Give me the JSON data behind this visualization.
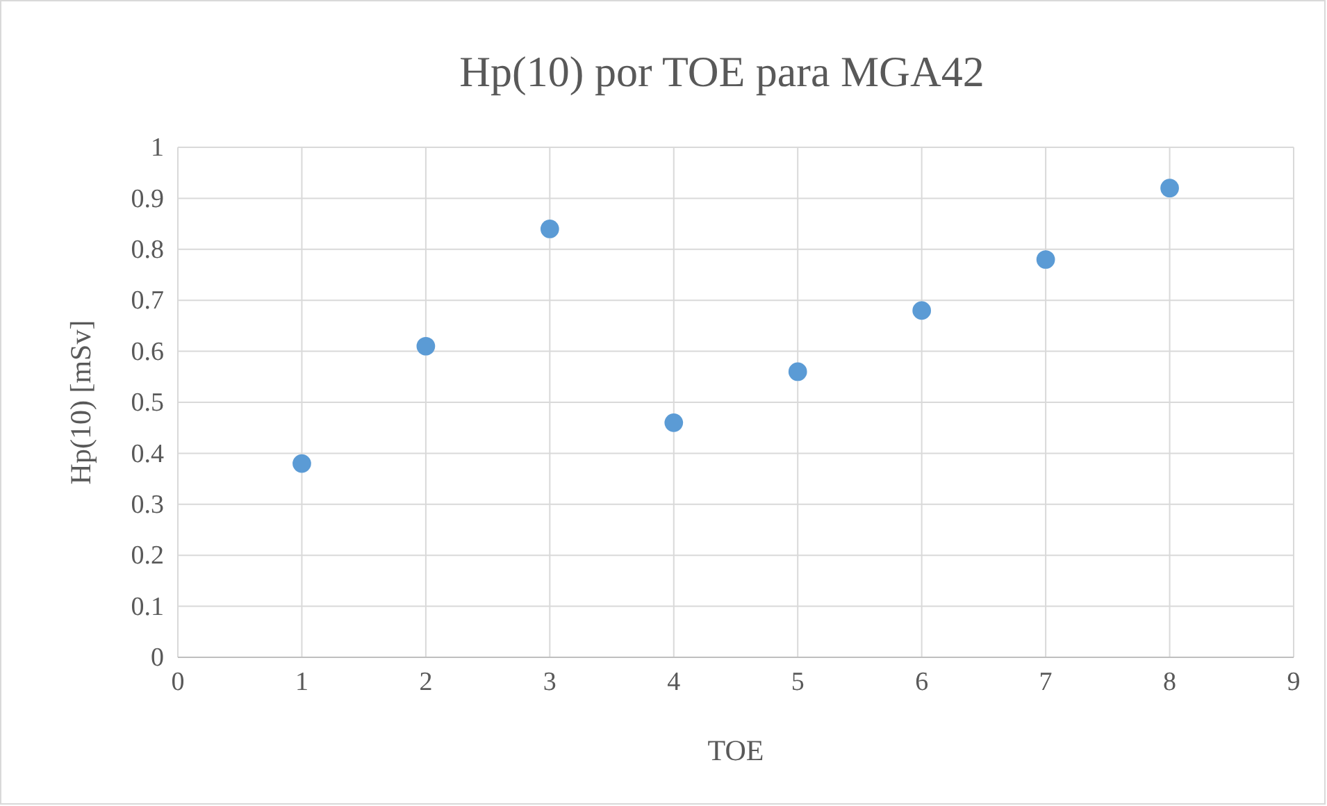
{
  "chart_data": {
    "type": "scatter",
    "title": "Hp(10) por TOE para MGA42",
    "xlabel": "TOE",
    "ylabel": "Hp(10) [mSv]",
    "x": [
      1,
      2,
      3,
      4,
      5,
      6,
      7,
      8
    ],
    "series": [
      {
        "color": "#5b9bd5",
        "values": [
          0.38,
          0.61,
          0.84,
          0.46,
          0.56,
          0.68,
          0.78,
          0.92
        ]
      }
    ],
    "xlim": [
      0,
      9
    ],
    "xticks": [
      0,
      1,
      2,
      3,
      4,
      5,
      6,
      7,
      8,
      9
    ],
    "ylim": [
      0,
      1
    ],
    "yticks": [
      0,
      0.1,
      0.2,
      0.3,
      0.4,
      0.5,
      0.6,
      0.7,
      0.8,
      0.9,
      1
    ],
    "grid": true,
    "marker": "circle"
  }
}
